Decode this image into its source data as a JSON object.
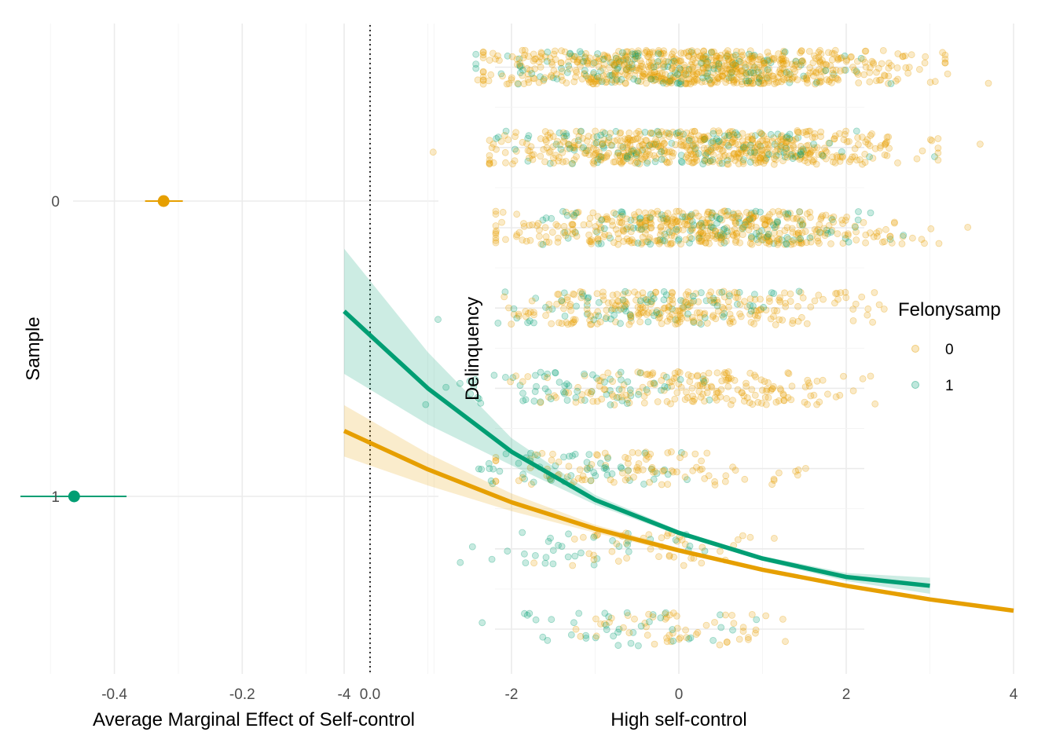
{
  "chart_data": [
    {
      "type": "scatter",
      "subtype": "point-range (coefficient plot)",
      "xlabel": "Average Marginal Effect of Self-control",
      "ylabel": "Sample",
      "xlim": [
        -0.56,
        0.14
      ],
      "x_ticks": [
        "-0.4",
        "-0.2",
        "0.0"
      ],
      "y_categories": [
        "0",
        "1"
      ],
      "reference_line": {
        "x": 0.0,
        "style": "dotted"
      },
      "grid": true,
      "points": [
        {
          "sample": "0",
          "estimate": -0.323,
          "lower": -0.352,
          "upper": -0.293,
          "color": "#E69F00"
        },
        {
          "sample": "1",
          "estimate": -0.463,
          "lower": -0.547,
          "upper": -0.381,
          "color": "#009E73"
        }
      ]
    },
    {
      "type": "line",
      "subtype": "fitted curves with confidence ribbons over jittered scatter",
      "xlabel": "High self-control",
      "ylabel": "Delinquency",
      "xlim": [
        -4.3,
        4.3
      ],
      "x_ticks": [
        "-4",
        "-2",
        "0",
        "2",
        "4"
      ],
      "y_levels": 8,
      "grid": true,
      "legend": {
        "title": "Felonysamp",
        "placement": "right",
        "entries": [
          "0",
          "1"
        ]
      },
      "series": [
        {
          "name": "0",
          "color": "#E69F00",
          "x": [
            -4,
            -3,
            -2,
            -1,
            0,
            1,
            2,
            3,
            4
          ],
          "fit": [
            3.47,
            2.99,
            2.58,
            2.25,
            1.98,
            1.74,
            1.54,
            1.37,
            1.23
          ],
          "ci_width": [
            0.32,
            0.2,
            0.11,
            0.05,
            0.03,
            0.02,
            0.02,
            0.02,
            0.02
          ],
          "points_per_level": [
            55,
            45,
            100,
            190,
            260,
            450,
            550,
            700
          ],
          "x_spread_per_level": [
            [
              -1.6,
              1.7
            ],
            [
              -2.5,
              1.8
            ],
            [
              -2.8,
              2.1
            ],
            [
              -2.7,
              2.8
            ],
            [
              -2.8,
              2.9
            ],
            [
              -3.0,
              3.5
            ],
            [
              -3.1,
              3.6
            ],
            [
              -3.2,
              3.7
            ]
          ]
        },
        {
          "name": "1",
          "color": "#009E73",
          "x": [
            -4,
            -3,
            -2,
            -1,
            0,
            1,
            2,
            3
          ],
          "fit": [
            4.96,
            4.0,
            3.21,
            2.61,
            2.2,
            1.88,
            1.65,
            1.54
          ],
          "ci_width": [
            0.78,
            0.45,
            0.17,
            0.06,
            0.03,
            0.03,
            0.05,
            0.1
          ],
          "points_per_level": [
            40,
            35,
            55,
            70,
            80,
            120,
            130,
            140
          ],
          "x_spread_per_level": [
            [
              -2.9,
              1.5
            ],
            [
              -3.1,
              0.8
            ],
            [
              -2.9,
              0.9
            ],
            [
              -3.6,
              1.0
            ],
            [
              -3.0,
              2.0
            ],
            [
              -2.3,
              3.1
            ],
            [
              -3.1,
              3.1
            ],
            [
              -3.2,
              3.0
            ]
          ]
        }
      ]
    }
  ]
}
